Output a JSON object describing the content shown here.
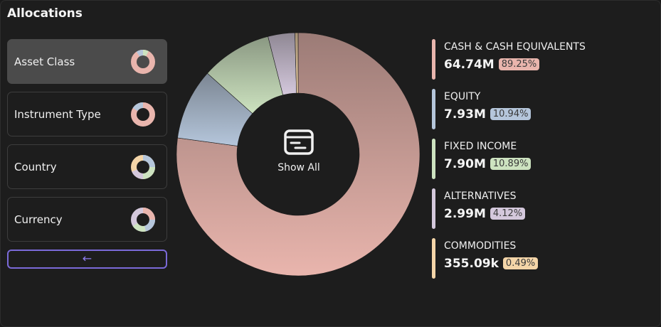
{
  "title": "Allocations",
  "nav": [
    {
      "label": "Asset Class",
      "active": true
    },
    {
      "label": "Instrument Type",
      "active": false
    },
    {
      "label": "Country",
      "active": false
    },
    {
      "label": "Currency",
      "active": false
    }
  ],
  "back_label": "←",
  "center_label": "Show All",
  "colors": {
    "cash": "#e9b5ad",
    "equity": "#b5c6db",
    "fixed_income": "#cde3c0",
    "alternatives": "#d4c8dc",
    "commodities": "#f4d5a8",
    "accent": "#7b6ad8"
  },
  "legend": [
    {
      "name": "CASH & CASH EQUIVALENTS",
      "value": "64.74M",
      "pct": "89.25%",
      "color": "#e9b5ad"
    },
    {
      "name": "EQUITY",
      "value": "7.93M",
      "pct": "10.94%",
      "color": "#b5c6db"
    },
    {
      "name": "FIXED INCOME",
      "value": "7.90M",
      "pct": "10.89%",
      "color": "#cde3c0"
    },
    {
      "name": "ALTERNATIVES",
      "value": "2.99M",
      "pct": "4.12%",
      "color": "#d4c8dc"
    },
    {
      "name": "COMMODITIES",
      "value": "355.09k",
      "pct": "0.49%",
      "color": "#f4d5a8"
    }
  ],
  "chart_data": {
    "type": "pie",
    "donut": true,
    "categories": [
      "CASH & CASH EQUIVALENTS",
      "EQUITY",
      "FIXED INCOME",
      "ALTERNATIVES",
      "COMMODITIES"
    ],
    "values": [
      64.74,
      7.93,
      7.9,
      2.99,
      0.35509
    ],
    "colors": [
      "#e9b5ad",
      "#b5c6db",
      "#cde3c0",
      "#d4c8dc",
      "#f4d5a8"
    ]
  }
}
